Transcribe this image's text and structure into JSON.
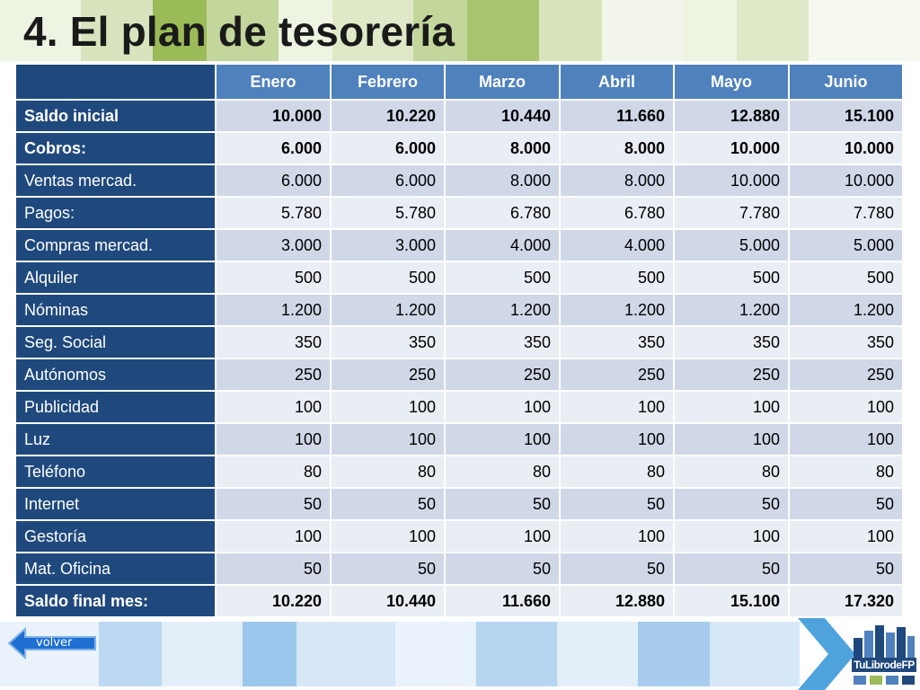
{
  "title": "4. El plan de tesorería",
  "colors": {
    "header": "#4f81bd",
    "rowLabel": "#1f497d",
    "rowOdd": "#d0d8e8",
    "rowEven": "#e9edf4",
    "green": "#9bbb59"
  },
  "table": {
    "columns": [
      "Enero",
      "Febrero",
      "Marzo",
      "Abril",
      "Mayo",
      "Junio"
    ],
    "rows": [
      {
        "label": "Saldo inicial",
        "bold": true,
        "values": [
          "10.000",
          "10.220",
          "10.440",
          "11.660",
          "12.880",
          "15.100"
        ]
      },
      {
        "label": "Cobros:",
        "bold": true,
        "values": [
          "6.000",
          "6.000",
          "8.000",
          "8.000",
          "10.000",
          "10.000"
        ]
      },
      {
        "label": "Ventas mercad.",
        "bold": false,
        "values": [
          "6.000",
          "6.000",
          "8.000",
          "8.000",
          "10.000",
          "10.000"
        ]
      },
      {
        "label": "Pagos:",
        "bold": false,
        "values": [
          "5.780",
          "5.780",
          "6.780",
          "6.780",
          "7.780",
          "7.780"
        ]
      },
      {
        "label": "Compras mercad.",
        "bold": false,
        "values": [
          "3.000",
          "3.000",
          "4.000",
          "4.000",
          "5.000",
          "5.000"
        ]
      },
      {
        "label": "Alquiler",
        "bold": false,
        "values": [
          "500",
          "500",
          "500",
          "500",
          "500",
          "500"
        ]
      },
      {
        "label": "Nóminas",
        "bold": false,
        "values": [
          "1.200",
          "1.200",
          "1.200",
          "1.200",
          "1.200",
          "1.200"
        ]
      },
      {
        "label": "Seg. Social",
        "bold": false,
        "values": [
          "350",
          "350",
          "350",
          "350",
          "350",
          "350"
        ]
      },
      {
        "label": "Autónomos",
        "bold": false,
        "values": [
          "250",
          "250",
          "250",
          "250",
          "250",
          "250"
        ]
      },
      {
        "label": "Publicidad",
        "bold": false,
        "values": [
          "100",
          "100",
          "100",
          "100",
          "100",
          "100"
        ]
      },
      {
        "label": "Luz",
        "bold": false,
        "values": [
          "100",
          "100",
          "100",
          "100",
          "100",
          "100"
        ]
      },
      {
        "label": "Teléfono",
        "bold": false,
        "values": [
          "80",
          "80",
          "80",
          "80",
          "80",
          "80"
        ]
      },
      {
        "label": "Internet",
        "bold": false,
        "values": [
          "50",
          "50",
          "50",
          "50",
          "50",
          "50"
        ]
      },
      {
        "label": "Gestoría",
        "bold": false,
        "values": [
          "100",
          "100",
          "100",
          "100",
          "100",
          "100"
        ]
      },
      {
        "label": "Mat. Oficina",
        "bold": false,
        "values": [
          "50",
          "50",
          "50",
          "50",
          "50",
          "50"
        ]
      },
      {
        "label": "Saldo final mes:",
        "bold": true,
        "values": [
          "10.220",
          "10.440",
          "11.660",
          "12.880",
          "15.100",
          "17.320"
        ]
      }
    ]
  },
  "nav": {
    "back_label": "volver",
    "back_icon": "left-arrow-icon"
  },
  "logo": {
    "text": "TuLibrodeFP"
  }
}
